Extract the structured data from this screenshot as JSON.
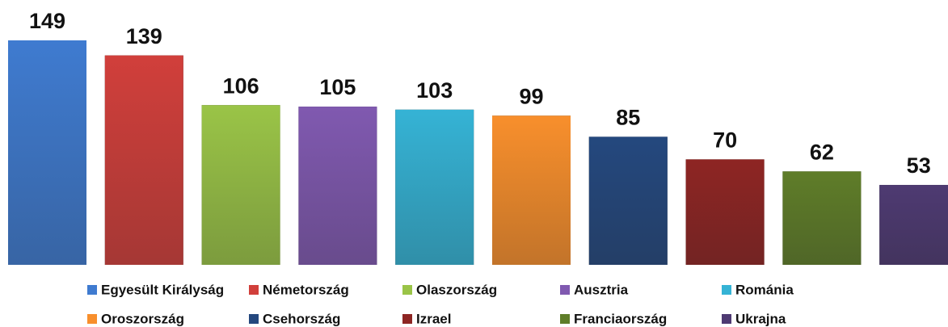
{
  "chart_data": {
    "type": "bar",
    "series": [
      {
        "name": "Egyesült Királyság",
        "color": "#3f7bd0",
        "values": [
          149
        ]
      },
      {
        "name": "Németország",
        "color": "#d13f3b",
        "values": [
          139
        ]
      },
      {
        "name": "Olaszország",
        "color": "#9ac447",
        "values": [
          106
        ]
      },
      {
        "name": "Ausztria",
        "color": "#8059b0",
        "values": [
          105
        ]
      },
      {
        "name": "Románia",
        "color": "#35b3d5",
        "values": [
          103
        ]
      },
      {
        "name": "Oroszország",
        "color": "#f88f2c",
        "values": [
          99
        ]
      },
      {
        "name": "Csehország",
        "color": "#24487e",
        "values": [
          85
        ]
      },
      {
        "name": "Izrael",
        "color": "#8e2523",
        "values": [
          70
        ]
      },
      {
        "name": "Franciaország",
        "color": "#5f7d29",
        "values": [
          62
        ]
      },
      {
        "name": "Ukrajna",
        "color": "#4e3a72",
        "values": [
          53
        ]
      }
    ]
  }
}
